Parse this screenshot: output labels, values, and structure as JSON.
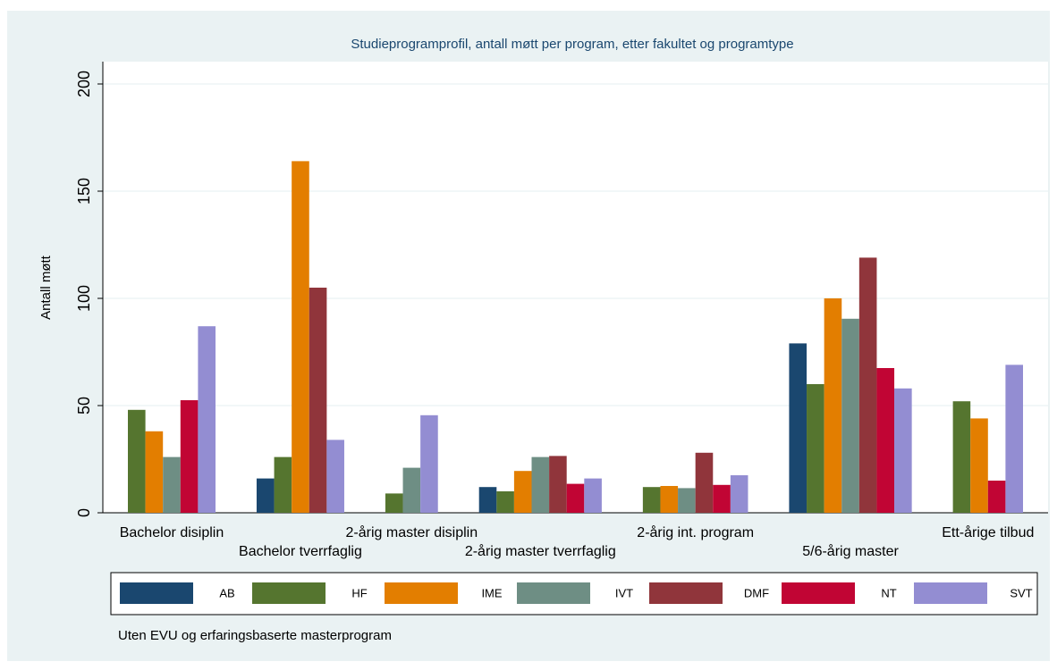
{
  "chart_data": {
    "type": "bar",
    "title": "Studieprogramprofil, antall møtt per program, etter fakultet og programtype",
    "y_label": "Antall møtt",
    "note": "Uten EVU og erfaringsbaserte masterprogram",
    "categories": [
      "Bachelor disiplin",
      "Bachelor tverrfaglig",
      "2-årig master disiplin",
      "2-årig master tverrfaglig",
      "2-årig int. program",
      "5/6-årig master",
      "Ett-årige tilbud"
    ],
    "series": [
      {
        "name": "AB",
        "color": "#1a476f",
        "values": [
          null,
          16,
          null,
          12,
          null,
          79,
          null
        ]
      },
      {
        "name": "HF",
        "color": "#55752f",
        "values": [
          48,
          26,
          9,
          10,
          12,
          60,
          52
        ]
      },
      {
        "name": "IME",
        "color": "#e37e00",
        "values": [
          38,
          164,
          null,
          19.5,
          12.5,
          100,
          44
        ]
      },
      {
        "name": "IVT",
        "color": "#6e8e84",
        "values": [
          26,
          null,
          21,
          26,
          11.5,
          90.5,
          null
        ]
      },
      {
        "name": "DMF",
        "color": "#90353b",
        "values": [
          null,
          105,
          null,
          26.5,
          28,
          119,
          null
        ]
      },
      {
        "name": "NT",
        "color": "#c10534",
        "values": [
          52.5,
          null,
          null,
          13.5,
          13,
          67.5,
          15
        ]
      },
      {
        "name": "SVT",
        "color": "#938dd2",
        "values": [
          87,
          34,
          45.5,
          16,
          17.5,
          58,
          69
        ]
      }
    ],
    "ylim": [
      0,
      200
    ],
    "yticks": [
      0,
      50,
      100,
      150,
      200
    ],
    "grid": true
  }
}
